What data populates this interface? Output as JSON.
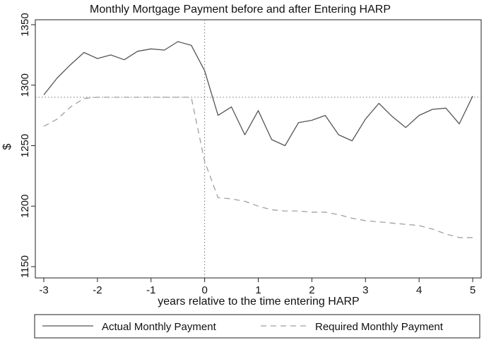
{
  "chart_data": {
    "type": "line",
    "title": "Monthly Mortgage Payment before and after Entering HARP",
    "xlabel": "years relative to the time entering HARP",
    "ylabel": "$",
    "xlim": [
      -3,
      5
    ],
    "ylim": [
      1150,
      1350
    ],
    "xticks": [
      -3,
      -2,
      -1,
      0,
      1,
      2,
      3,
      4,
      5
    ],
    "xtick_labels": [
      "-3",
      "-2",
      "-1",
      "0",
      "1",
      "2",
      "3",
      "4",
      "5"
    ],
    "yticks": [
      1150,
      1200,
      1250,
      1300,
      1350
    ],
    "ytick_labels": [
      "1150",
      "1200",
      "1250",
      "1300",
      "1350"
    ],
    "grid": false,
    "reference_lines": {
      "x": 0,
      "y": 1290
    },
    "legend_position": "bottom",
    "series": [
      {
        "name": "Actual Monthly Payment",
        "style": "solid",
        "color": "#555555",
        "x": [
          -3,
          -2.75,
          -2.5,
          -2.25,
          -2,
          -1.75,
          -1.5,
          -1.25,
          -1,
          -0.75,
          -0.5,
          -0.25,
          0,
          0.25,
          0.5,
          0.75,
          1,
          1.25,
          1.5,
          1.75,
          2,
          2.25,
          2.5,
          2.75,
          3,
          3.25,
          3.5,
          3.75,
          4,
          4.25,
          4.5,
          4.75,
          5
        ],
        "values": [
          1292,
          1306,
          1317,
          1327,
          1322,
          1325,
          1321,
          1328,
          1330,
          1329,
          1336,
          1333,
          1312,
          1275,
          1282,
          1259,
          1279,
          1255,
          1250,
          1269,
          1271,
          1275,
          1259,
          1254,
          1272,
          1285,
          1274,
          1265,
          1275,
          1280,
          1281,
          1268,
          1291
        ]
      },
      {
        "name": "Required Monthly Payment",
        "style": "dashed",
        "color": "#a0a0a0",
        "x": [
          -3,
          -2.75,
          -2.5,
          -2.25,
          -2,
          -1.75,
          -1.5,
          -1.25,
          -1,
          -0.75,
          -0.5,
          -0.25,
          0,
          0.25,
          0.5,
          0.75,
          1,
          1.25,
          1.5,
          1.75,
          2,
          2.25,
          2.5,
          2.75,
          3,
          3.25,
          3.5,
          3.75,
          4,
          4.25,
          4.5,
          4.75,
          5
        ],
        "values": [
          1266,
          1272,
          1282,
          1289,
          1290,
          1290,
          1290,
          1290,
          1290,
          1290,
          1290,
          1290,
          1237,
          1207,
          1206,
          1204,
          1200,
          1197,
          1196,
          1196,
          1195,
          1195,
          1193,
          1190,
          1188,
          1187,
          1186,
          1185,
          1184,
          1181,
          1177,
          1174,
          1174
        ]
      }
    ]
  }
}
